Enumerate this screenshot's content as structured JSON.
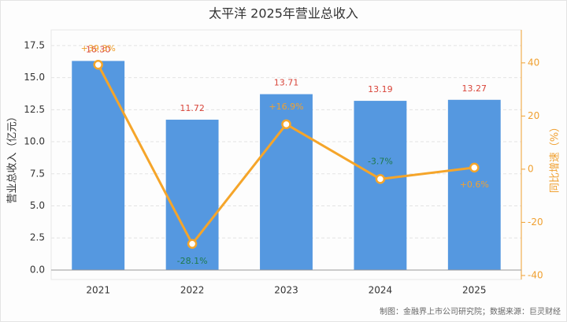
{
  "chart_data": {
    "type": "bar-line",
    "title": "太平洋 2025年营业总收入",
    "y_label": "营业总收入（亿元）",
    "y2_label": "同比增速（%）",
    "source": "制图：金融界上市公司研究院；数据来源：巨灵财经",
    "categories": [
      "2021",
      "2022",
      "2023",
      "2024",
      "2025"
    ],
    "series": [
      {
        "name": "营业总收入",
        "type": "bar",
        "color": "#5598e0",
        "values": [
          16.3,
          11.72,
          13.71,
          13.19,
          13.27
        ],
        "value_labels": [
          "16.30",
          "11.72",
          "13.71",
          "13.19",
          "13.27"
        ],
        "label_color": "#d9453a"
      },
      {
        "name": "同比增速",
        "type": "line",
        "axis": "y2",
        "color": "#f5a52a",
        "values": [
          39.3,
          -28.1,
          16.9,
          -3.7,
          0.6
        ],
        "value_labels": [
          "+39.3%",
          "-28.1%",
          "+16.9%",
          "-3.7%",
          "+0.6%"
        ],
        "label_colors": {
          "positive": "#f0a030",
          "negative": "#1f7a4c"
        }
      }
    ],
    "ylim": [
      -0.74,
      18.72
    ],
    "yticks": [
      {
        "value": 0,
        "label": "0.0"
      },
      2.5,
      {
        "value": 5,
        "label": "5.0"
      },
      7.5,
      {
        "value": 10,
        "label": "10.0"
      },
      12.5,
      {
        "value": 15,
        "label": "15.0"
      },
      17.5
    ],
    "y2lim": [
      -41.5,
      52.4
    ],
    "y2ticks": [
      -40,
      -20,
      0,
      20,
      40
    ],
    "grid": true
  }
}
